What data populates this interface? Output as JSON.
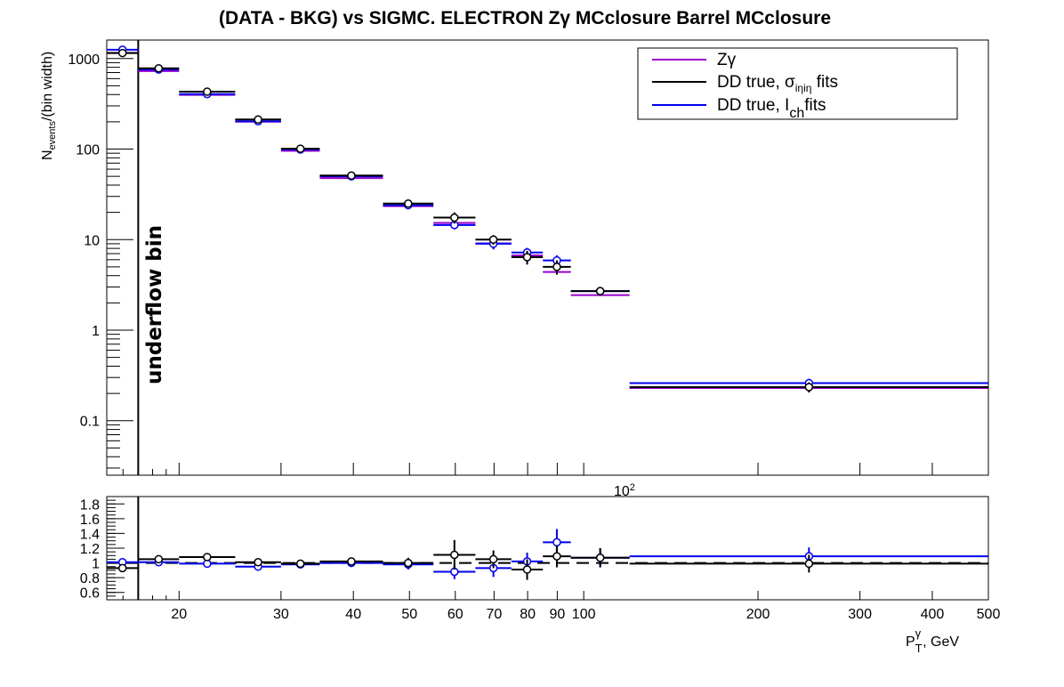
{
  "chart_data": [
    {
      "type": "scatter",
      "title": "(DATA - BKG) vs SIGMC. ELECTRON Zγ MCclosure Barrel MCclosure",
      "ylabel_main": "N",
      "ylabel_sub": "events",
      "ylabel_tail": "/(bin width)",
      "yscale": "log",
      "xscale": "log",
      "ylim": [
        0.025,
        1600
      ],
      "xlim": [
        15,
        500
      ],
      "x_tick_labels": [
        "20",
        "30",
        "40",
        "50",
        "60",
        "70",
        "80",
        "90",
        "100",
        "200",
        "300",
        "400",
        "500"
      ],
      "x_top_label_main": "10",
      "x_top_label_exp": "2",
      "y_tick_labels": [
        "0.1",
        "1",
        "10",
        "100",
        "1000"
      ],
      "annotation": "underflow bin",
      "legend_position": "top-right",
      "legend": [
        {
          "label_main": "Zγ",
          "label_sub": "",
          "label_tail": "",
          "color": "#9900cc"
        },
        {
          "label_main": "DD true,  σ",
          "label_sub": "iηiη",
          "label_tail": " fits",
          "color": "#000000"
        },
        {
          "label_main": "DD true, I",
          "label_sub": "ch",
          "label_tail": "fits",
          "color": "#0000ee"
        }
      ],
      "bins": [
        [
          15,
          17
        ],
        [
          17,
          20
        ],
        [
          20,
          25
        ],
        [
          25,
          30
        ],
        [
          30,
          35
        ],
        [
          35,
          45
        ],
        [
          45,
          55
        ],
        [
          55,
          65
        ],
        [
          65,
          75
        ],
        [
          75,
          85
        ],
        [
          85,
          95
        ],
        [
          95,
          120
        ],
        [
          120,
          500
        ]
      ],
      "series": [
        {
          "name": "Zγ",
          "color": "#9900cc",
          "values": [
            1210,
            760,
            415,
            210,
            100,
            50,
            24.5,
            16,
            9.5,
            7.0,
            4.6,
            2.55,
            0.24
          ]
        },
        {
          "name": "DD true,  σiηiη fits",
          "color": "#000000",
          "values": [
            1150,
            780,
            430,
            212,
            101,
            51,
            25,
            17.5,
            10,
            6.4,
            5.0,
            2.7,
            0.235
          ],
          "errors": [
            40,
            25,
            18,
            10,
            5,
            2.5,
            1.5,
            2.5,
            1.2,
            1.1,
            0.9,
            0.3,
            0.03
          ]
        },
        {
          "name": "DD true, Ich fits",
          "color": "#0000ee",
          "values": [
            1250,
            755,
            405,
            203,
            99,
            50,
            24,
            14.5,
            9,
            7.2,
            5.9,
            2.7,
            0.26
          ],
          "errors": [
            40,
            25,
            18,
            10,
            5,
            2.5,
            1.5,
            1.5,
            1.2,
            0.9,
            0.8,
            0.3,
            0.03
          ]
        }
      ]
    },
    {
      "type": "scatter",
      "xlabel_main": "P",
      "xlabel_sub": "T",
      "xlabel_sup": "γ",
      "xlabel_tail": ", GeV",
      "xscale": "log",
      "xlim": [
        15,
        500
      ],
      "ylim": [
        0.5,
        1.9
      ],
      "y_tick_labels": [
        "0.6",
        "0.8",
        "1",
        "1.2",
        "1.4",
        "1.6",
        "1.8"
      ],
      "reference_line": 1.0,
      "series": [
        {
          "name": "DD true,  σiηiη fits / Zγ",
          "color": "#000000",
          "values": [
            0.93,
            1.05,
            1.08,
            1.01,
            0.99,
            1.02,
            1.0,
            1.11,
            1.05,
            0.91,
            1.09,
            1.07,
            0.99
          ],
          "errors": [
            0.03,
            0.03,
            0.04,
            0.04,
            0.05,
            0.05,
            0.07,
            0.2,
            0.12,
            0.14,
            0.15,
            0.13,
            0.12
          ]
        },
        {
          "name": "DD true, Ich fits / Zγ",
          "color": "#0000ee",
          "values": [
            1.01,
            1.01,
            0.99,
            0.95,
            0.98,
            1.0,
            0.98,
            0.88,
            0.93,
            1.02,
            1.28,
            1.07,
            1.09
          ],
          "errors": [
            0.03,
            0.03,
            0.04,
            0.04,
            0.05,
            0.05,
            0.07,
            0.1,
            0.12,
            0.12,
            0.18,
            0.13,
            0.12
          ]
        }
      ]
    }
  ]
}
